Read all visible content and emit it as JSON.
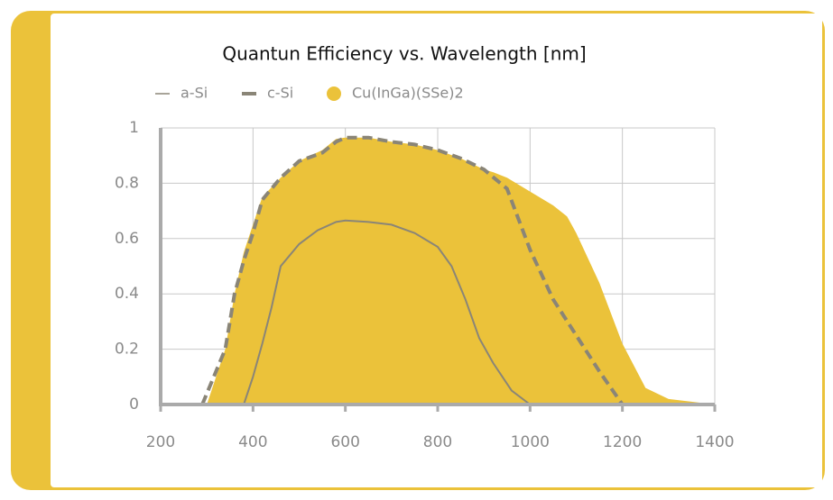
{
  "chart_data": {
    "type": "line",
    "title": "Quantun Efficiency vs. Wavelength [nm]",
    "xlim": [
      200,
      1400
    ],
    "xticks": [
      200,
      400,
      600,
      800,
      1000,
      1200,
      1400
    ],
    "ylim": [
      0,
      1
    ],
    "yticks": [
      0,
      0.2,
      0.4,
      0.6,
      0.8,
      1
    ],
    "grid": true,
    "series": [
      {
        "name": "Cu(InGa)(SSe)2",
        "color": "#ebc23a",
        "style": "area",
        "x": [
          300,
          320,
          340,
          360,
          380,
          400,
          420,
          460,
          500,
          550,
          580,
          600,
          650,
          700,
          750,
          800,
          850,
          900,
          920,
          950,
          1000,
          1050,
          1080,
          1100,
          1150,
          1200,
          1250,
          1300,
          1400
        ],
        "values": [
          0,
          0.1,
          0.2,
          0.4,
          0.55,
          0.65,
          0.75,
          0.82,
          0.88,
          0.92,
          0.96,
          0.965,
          0.965,
          0.95,
          0.94,
          0.92,
          0.89,
          0.85,
          0.84,
          0.82,
          0.77,
          0.72,
          0.68,
          0.62,
          0.44,
          0.22,
          0.06,
          0.02,
          0
        ]
      },
      {
        "name": "a-Si",
        "color": "#8a8577",
        "style": "solid",
        "x": [
          380,
          400,
          420,
          440,
          460,
          500,
          540,
          580,
          600,
          650,
          700,
          750,
          800,
          830,
          860,
          890,
          920,
          960,
          1000
        ],
        "values": [
          0,
          0.1,
          0.22,
          0.35,
          0.5,
          0.58,
          0.63,
          0.66,
          0.665,
          0.66,
          0.65,
          0.62,
          0.57,
          0.5,
          0.38,
          0.24,
          0.15,
          0.05,
          0
        ]
      },
      {
        "name": "c-Si",
        "color": "#8a8577",
        "style": "dashed",
        "x": [
          290,
          320,
          340,
          360,
          380,
          400,
          420,
          460,
          500,
          550,
          580,
          600,
          650,
          700,
          750,
          800,
          850,
          900,
          950,
          1000,
          1050,
          1100,
          1150,
          1200
        ],
        "values": [
          0,
          0.12,
          0.2,
          0.4,
          0.52,
          0.62,
          0.74,
          0.82,
          0.88,
          0.91,
          0.95,
          0.965,
          0.965,
          0.95,
          0.94,
          0.92,
          0.89,
          0.85,
          0.78,
          0.56,
          0.38,
          0.25,
          0.12,
          0
        ]
      }
    ]
  }
}
